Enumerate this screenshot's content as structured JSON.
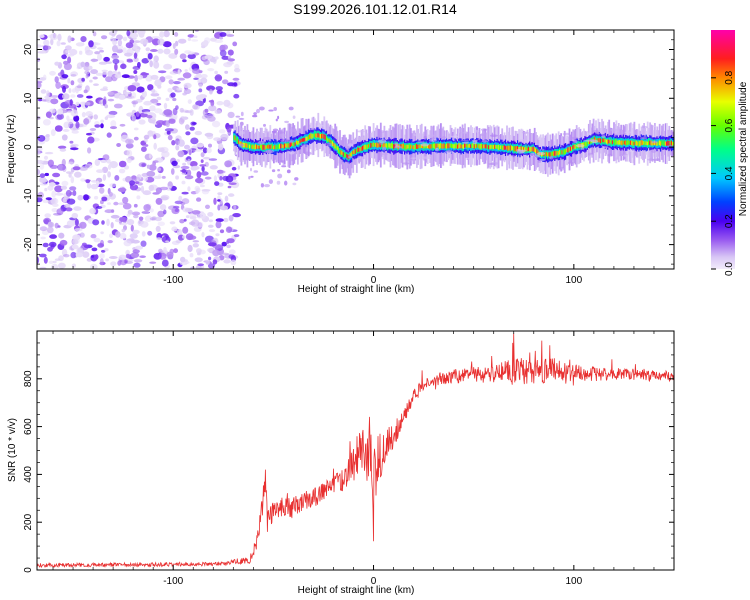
{
  "title": "S199.2026.101.12.01.R14",
  "chart_data": [
    {
      "type": "heatmap",
      "xlabel": "Height of straight line (km)",
      "ylabel": "Frequency (Hz)",
      "xlim": [
        -168,
        150
      ],
      "ylim": [
        -25,
        24
      ],
      "xticks": [
        -100,
        0,
        100
      ],
      "xtick_labels": [
        "-100",
        "0",
        "100"
      ],
      "yticks": [
        -20,
        -10,
        0,
        10,
        20
      ],
      "ytick_labels": [
        "-20",
        "-10",
        "0",
        "10",
        "20"
      ],
      "colorbar": {
        "label": "Normalized spectral amplitude",
        "range": [
          0,
          1
        ],
        "ticks": [
          0.0,
          0.2,
          0.4,
          0.6,
          0.8
        ],
        "tick_labels": [
          "0.0",
          "0.2",
          "0.4",
          "0.6",
          "0.8"
        ]
      },
      "noise_region": {
        "x": [
          -168,
          -68
        ],
        "amplitude_range": [
          0.02,
          0.15
        ]
      },
      "ridge": {
        "amplitude_peak": 0.92,
        "x": [
          -70,
          -66,
          -60,
          -55,
          -50,
          -45,
          -40,
          -35,
          -30,
          -25,
          -20,
          -17,
          -13,
          -10,
          -5,
          0,
          10,
          20,
          30,
          40,
          50,
          60,
          70,
          80,
          83,
          88,
          95,
          100,
          105,
          110,
          120,
          130,
          140,
          149
        ],
        "freq": [
          2,
          0.5,
          0,
          0,
          0,
          0.2,
          0.6,
          1.5,
          2.5,
          2.2,
          0.5,
          -1,
          -2,
          -1,
          0,
          0.5,
          0.2,
          0,
          0.2,
          0.2,
          0.2,
          0,
          -0.3,
          -0.5,
          -1.5,
          -1.5,
          -1,
          0,
          0.5,
          1.5,
          1,
          0.8,
          0.8,
          0.8
        ]
      }
    },
    {
      "type": "line",
      "xlabel": "Height of straight line (km)",
      "ylabel": "SNR (10 * v/v)",
      "xlim": [
        -168,
        150
      ],
      "ylim": [
        0,
        1000
      ],
      "xticks": [
        -100,
        0,
        100
      ],
      "xtick_labels": [
        "-100",
        "0",
        "100"
      ],
      "yticks": [
        0,
        200,
        400,
        600,
        800
      ],
      "ytick_labels": [
        "0",
        "200",
        "400",
        "600",
        "800"
      ],
      "series": [
        {
          "name": "SNR",
          "color": "#e83030",
          "x": [
            -168,
            -120,
            -80,
            -62,
            -58,
            -55,
            -54,
            -53,
            -50,
            -45,
            -40,
            -35,
            -30,
            -25,
            -20,
            -15,
            -10,
            -5,
            -2,
            0,
            2,
            5,
            10,
            15,
            20,
            25,
            30,
            40,
            50,
            60,
            70,
            80,
            90,
            100,
            110,
            120,
            130,
            140,
            150
          ],
          "y": [
            20,
            22,
            25,
            40,
            120,
            300,
            390,
            200,
            240,
            270,
            260,
            290,
            300,
            330,
            350,
            390,
            440,
            500,
            500,
            400,
            450,
            500,
            560,
            640,
            720,
            770,
            790,
            810,
            820,
            820,
            830,
            830,
            840,
            830,
            820,
            820,
            820,
            815,
            810
          ],
          "noise": [
            8,
            8,
            8,
            15,
            30,
            60,
            50,
            45,
            45,
            45,
            45,
            40,
            40,
            40,
            45,
            60,
            80,
            110,
            150,
            150,
            120,
            90,
            50,
            40,
            35,
            30,
            30,
            30,
            35,
            40,
            55,
            55,
            50,
            40,
            30,
            25,
            25,
            25,
            20
          ],
          "spikes": [
            {
              "x": -54,
              "y": 420
            },
            {
              "x": 0,
              "y": 120
            },
            {
              "x": 70,
              "y": 990
            },
            {
              "x": 84,
              "y": 960
            },
            {
              "x": 78,
              "y": 910
            },
            {
              "x": 88,
              "y": 940
            },
            {
              "x": 96,
              "y": 780
            }
          ]
        }
      ]
    }
  ]
}
